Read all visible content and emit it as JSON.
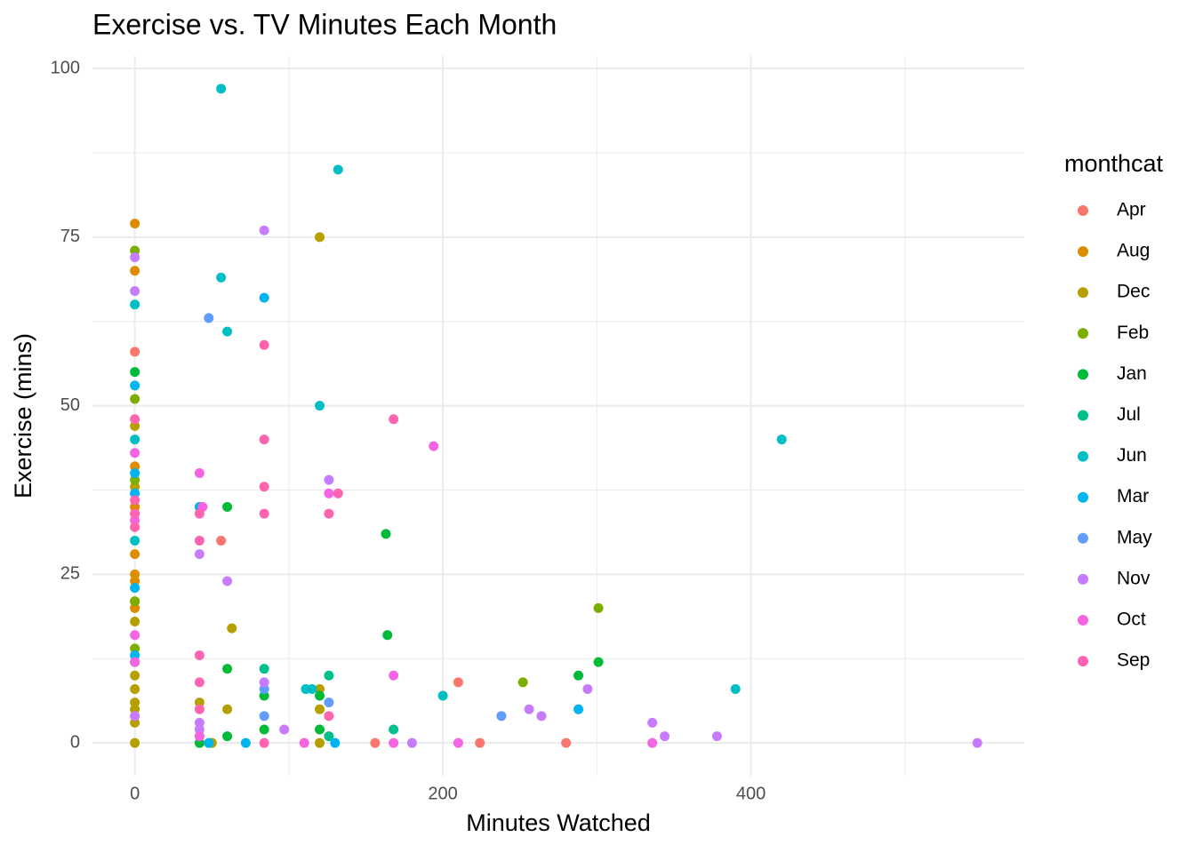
{
  "chart_data": {
    "type": "scatter",
    "title": "Exercise vs. TV Minutes Each Month",
    "x_label": "Minutes Watched",
    "y_label": "Exercise (mins)",
    "legend_title": "monthcat",
    "xlim": [
      -27.5,
      577.5
    ],
    "xticks": [
      0,
      200,
      400
    ],
    "ylim": [
      -4.85,
      101.85
    ],
    "yticks": [
      0,
      25,
      50,
      75,
      100
    ],
    "grid": true,
    "legend_position": "right",
    "series": [
      {
        "name": "Apr",
        "color": "#F8766D",
        "x": [
          0,
          56,
          156,
          210,
          224,
          280
        ],
        "y": [
          58,
          30,
          0,
          9,
          0,
          0
        ]
      },
      {
        "name": "Aug",
        "color": "#DE8C00",
        "x": [
          0,
          0,
          0,
          0,
          0,
          0,
          0,
          0,
          50
        ],
        "y": [
          77,
          70,
          41,
          35,
          28,
          25,
          24,
          20,
          0
        ]
      },
      {
        "name": "Dec",
        "color": "#B79F00",
        "x": [
          0,
          0,
          0,
          0,
          0,
          0,
          0,
          0,
          0,
          0,
          120,
          120,
          120,
          120,
          63,
          60,
          42,
          50
        ],
        "y": [
          47,
          38,
          21,
          18,
          10,
          8,
          6,
          5,
          3,
          0,
          75,
          8,
          5,
          0,
          17,
          5,
          6,
          0
        ]
      },
      {
        "name": "Feb",
        "color": "#7CAE00",
        "x": [
          0,
          0,
          0,
          0,
          0,
          301,
          252
        ],
        "y": [
          73,
          51,
          39,
          21,
          14,
          20,
          9
        ]
      },
      {
        "name": "Jan",
        "color": "#00BA38",
        "x": [
          0,
          0,
          60,
          163,
          164,
          301,
          288,
          60,
          84,
          84,
          120,
          120,
          60,
          42
        ],
        "y": [
          55,
          12,
          35,
          31,
          16,
          12,
          10,
          11,
          7,
          2,
          7,
          2,
          1,
          0
        ]
      },
      {
        "name": "Jul",
        "color": "#00C08B",
        "x": [
          84,
          126,
          168,
          126
        ],
        "y": [
          11,
          10,
          2,
          1
        ]
      },
      {
        "name": "Jun",
        "color": "#00BFC4",
        "x": [
          56,
          132,
          56,
          60,
          120,
          420,
          111,
          115,
          200,
          390,
          0,
          0,
          0
        ],
        "y": [
          97,
          85,
          69,
          61,
          50,
          45,
          8,
          8,
          7,
          8,
          65,
          45,
          30
        ]
      },
      {
        "name": "Mar",
        "color": "#00B4F0",
        "x": [
          0,
          0,
          0,
          0,
          0,
          42,
          84,
          288,
          72,
          48,
          130
        ],
        "y": [
          53,
          40,
          37,
          23,
          13,
          35,
          66,
          5,
          0,
          0,
          0
        ]
      },
      {
        "name": "May",
        "color": "#619CFF",
        "x": [
          48,
          238,
          84,
          84,
          126
        ],
        "y": [
          63,
          4,
          4,
          8,
          6
        ]
      },
      {
        "name": "Nov",
        "color": "#C77CFF",
        "x": [
          0,
          0,
          0,
          84,
          126,
          42,
          60,
          256,
          264,
          294,
          336,
          344,
          378,
          547,
          97,
          180,
          84,
          42,
          42,
          42
        ],
        "y": [
          72,
          67,
          4,
          76,
          39,
          28,
          24,
          5,
          4,
          8,
          3,
          1,
          1,
          0,
          2,
          0,
          9,
          3,
          2,
          1
        ]
      },
      {
        "name": "Oct",
        "color": "#F564E3",
        "x": [
          0,
          0,
          0,
          0,
          42,
          44,
          126,
          168,
          194,
          110,
          168,
          210,
          336,
          42
        ],
        "y": [
          43,
          33,
          16,
          12,
          40,
          35,
          37,
          10,
          44,
          0,
          0,
          0,
          0,
          1
        ]
      },
      {
        "name": "Sep",
        "color": "#FF64B0",
        "x": [
          0,
          0,
          0,
          0,
          84,
          168,
          84,
          84,
          84,
          126,
          132,
          42,
          42,
          42,
          42,
          42,
          84,
          126
        ],
        "y": [
          48,
          36,
          34,
          32,
          59,
          48,
          45,
          38,
          34,
          34,
          37,
          34,
          30,
          13,
          9,
          5,
          0,
          4
        ]
      }
    ]
  }
}
